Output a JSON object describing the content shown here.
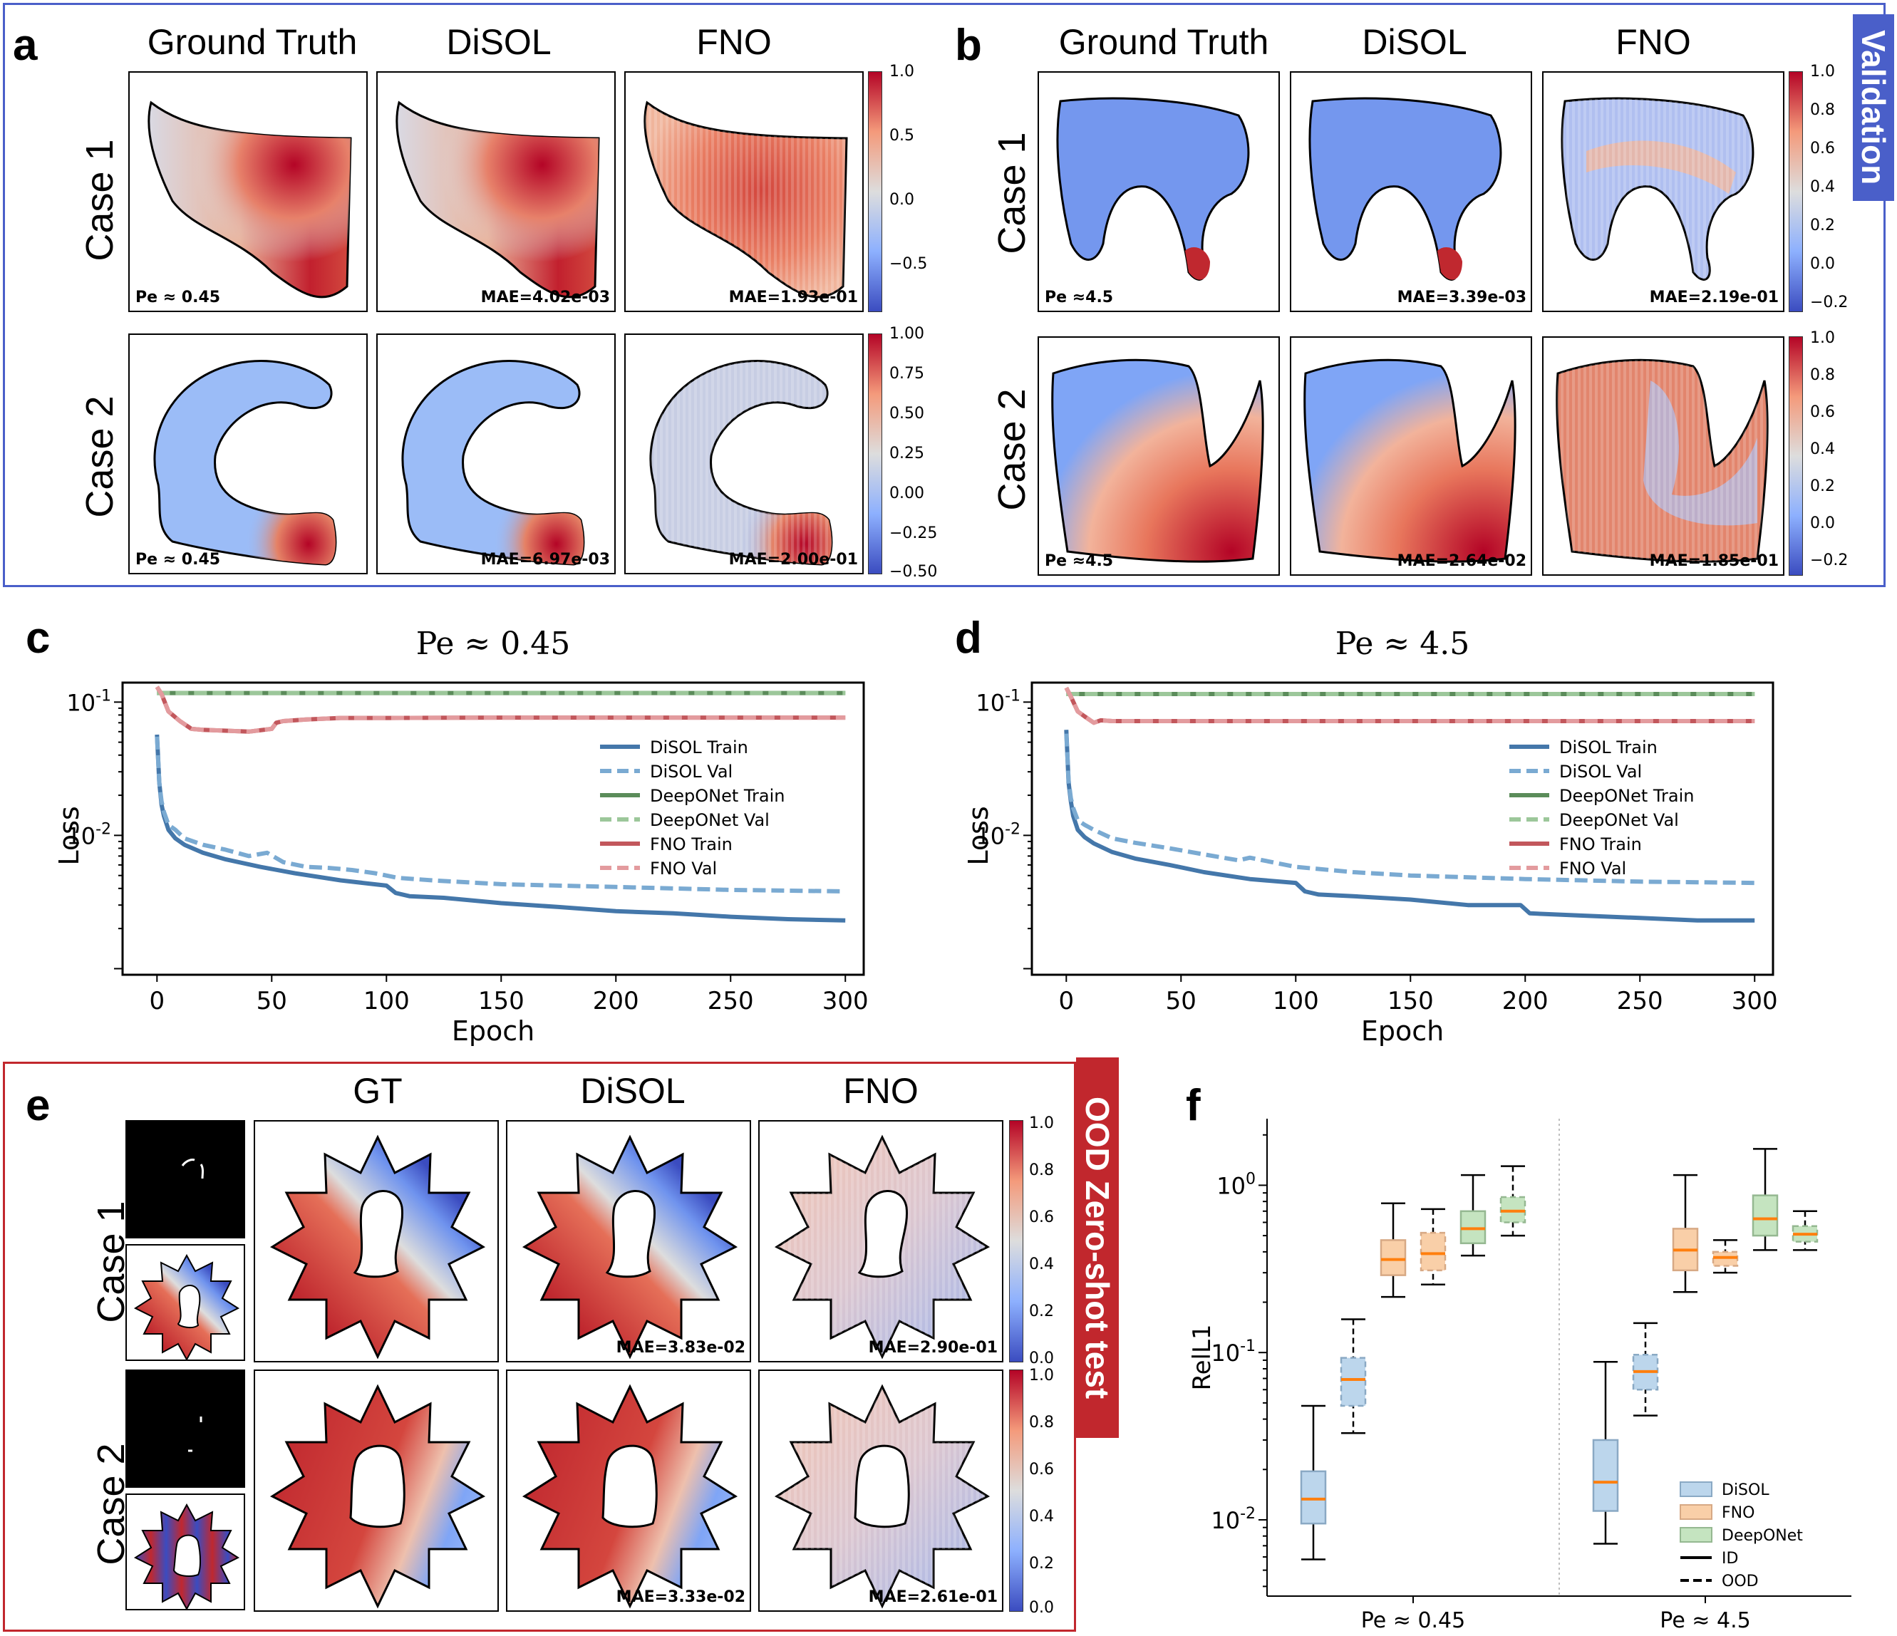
{
  "panel_a": {
    "letter": "a",
    "columns": [
      "Ground Truth",
      "DiSOL",
      "FNO"
    ],
    "rows": [
      "Case 1",
      "Case 2"
    ],
    "case1": {
      "pe": "Pe ≈ 0.45",
      "mae_disol": "MAE=4.02e-03",
      "mae_fno": "MAE=1.93e-01",
      "cbar_ticks": [
        "1.0",
        "0.5",
        "0.0",
        "−0.5"
      ]
    },
    "case2": {
      "pe": "Pe ≈ 0.45",
      "mae_disol": "MAE=6.97e-03",
      "mae_fno": "MAE=2.00e-01",
      "cbar_ticks": [
        "1.00",
        "0.75",
        "0.50",
        "0.25",
        "0.00",
        "−0.25",
        "−0.50"
      ]
    }
  },
  "panel_b": {
    "letter": "b",
    "columns": [
      "Ground Truth",
      "DiSOL",
      "FNO"
    ],
    "rows": [
      "Case 1",
      "Case 2"
    ],
    "side_tag": "Validation",
    "case1": {
      "pe": "Pe ≈4.5",
      "mae_disol": "MAE=3.39e-03",
      "mae_fno": "MAE=2.19e-01",
      "cbar_ticks": [
        "1.0",
        "0.8",
        "0.6",
        "0.4",
        "0.2",
        "0.0",
        "−0.2"
      ]
    },
    "case2": {
      "pe": "Pe ≈4.5",
      "mae_disol": "MAE=2.64e-02",
      "mae_fno": "MAE=1.85e-01",
      "cbar_ticks": [
        "1.0",
        "0.8",
        "0.6",
        "0.4",
        "0.2",
        "0.0",
        "−0.2"
      ]
    }
  },
  "panel_e": {
    "letter": "e",
    "columns": [
      "GT",
      "DiSOL",
      "FNO"
    ],
    "rows": [
      "Case 1",
      "Case 2"
    ],
    "side_tag": "OOD Zero-shot test",
    "case1": {
      "mae_disol": "MAE=3.83e-02",
      "mae_fno": "MAE=2.90e-01",
      "cbar_ticks": [
        "1.0",
        "0.8",
        "0.6",
        "0.4",
        "0.2",
        "0.0"
      ]
    },
    "case2": {
      "mae_disol": "MAE=3.33e-02",
      "mae_fno": "MAE=2.61e-01",
      "cbar_ticks": [
        "1.0",
        "0.8",
        "0.6",
        "0.4",
        "0.2",
        "0.0"
      ]
    }
  },
  "colors": {
    "validation_border": "#4a5fc9",
    "validation_tag": "#4a5fc9",
    "ood_border": "#c1272d",
    "ood_tag": "#c1272d",
    "disol": "#4477aa",
    "deeponet": "#5b8c5a",
    "fno": "#c2575c",
    "box_disol": "#bcd6ec",
    "box_fno": "#f9cfa8",
    "box_deeponet": "#c5e4c0",
    "median": "#ff7f0e"
  },
  "chart_data": [
    {
      "id": "c",
      "type": "line",
      "title": "Pe ≈ 0.45",
      "xlabel": "Epoch",
      "ylabel": "Loss",
      "yscale": "log",
      "xlim": [
        -15,
        308
      ],
      "ylim": [
        0.0009,
        0.14
      ],
      "xticks": [
        0,
        50,
        100,
        150,
        200,
        250,
        300
      ],
      "yticks": [
        {
          "value": 0.1,
          "label": "10^-1"
        },
        {
          "value": 0.01,
          "label": "10^-2"
        }
      ],
      "legend": "right",
      "series": [
        {
          "name": "DiSOL Train",
          "style": "solid",
          "color": "#4477aa",
          "x": [
            0,
            1,
            2,
            3,
            5,
            8,
            12,
            20,
            30,
            45,
            60,
            80,
            100,
            104,
            110,
            125,
            150,
            175,
            200,
            225,
            250,
            275,
            300
          ],
          "y": [
            0.057,
            0.025,
            0.017,
            0.014,
            0.011,
            0.0095,
            0.0085,
            0.0074,
            0.0066,
            0.0058,
            0.0052,
            0.0046,
            0.0042,
            0.0037,
            0.0035,
            0.0034,
            0.0031,
            0.0029,
            0.0027,
            0.0026,
            0.00245,
            0.00235,
            0.0023
          ]
        },
        {
          "name": "DiSOL Val",
          "style": "dashed",
          "color": "#7aaad2",
          "x": [
            0,
            1,
            2,
            3,
            5,
            8,
            12,
            20,
            30,
            40,
            48,
            55,
            65,
            75,
            85,
            95,
            105,
            120,
            150,
            200,
            250,
            300
          ],
          "y": [
            0.055,
            0.025,
            0.018,
            0.015,
            0.012,
            0.011,
            0.0095,
            0.0085,
            0.0078,
            0.007,
            0.0074,
            0.0063,
            0.0058,
            0.0057,
            0.0055,
            0.0052,
            0.0048,
            0.0046,
            0.0043,
            0.0041,
            0.0039,
            0.0038
          ]
        },
        {
          "name": "DeepONet Train",
          "style": "solid",
          "color": "#5b8c5a",
          "x": [
            0,
            300
          ],
          "y": [
            0.117,
            0.117
          ]
        },
        {
          "name": "DeepONet Val",
          "style": "dashed",
          "color": "#9cc79a",
          "x": [
            0,
            300
          ],
          "y": [
            0.117,
            0.117
          ]
        },
        {
          "name": "FNO Train",
          "style": "solid",
          "color": "#c2575c",
          "x": [
            0,
            2,
            5,
            10,
            15,
            20,
            30,
            40,
            50,
            52,
            55,
            65,
            80,
            100,
            150,
            200,
            250,
            300
          ],
          "y": [
            0.13,
            0.115,
            0.085,
            0.072,
            0.063,
            0.062,
            0.061,
            0.06,
            0.063,
            0.07,
            0.072,
            0.074,
            0.076,
            0.076,
            0.0765,
            0.0765,
            0.0765,
            0.0765
          ]
        },
        {
          "name": "FNO Val",
          "style": "dashed",
          "color": "#e39b9e",
          "x": [
            0,
            2,
            5,
            10,
            15,
            20,
            30,
            40,
            50,
            52,
            55,
            65,
            80,
            100,
            150,
            200,
            250,
            300
          ],
          "y": [
            0.13,
            0.115,
            0.085,
            0.072,
            0.063,
            0.062,
            0.061,
            0.06,
            0.063,
            0.07,
            0.072,
            0.074,
            0.076,
            0.076,
            0.0765,
            0.0765,
            0.0765,
            0.0765
          ]
        }
      ]
    },
    {
      "id": "d",
      "type": "line",
      "title": "Pe ≈ 4.5",
      "xlabel": "Epoch",
      "ylabel": "Loss",
      "yscale": "log",
      "xlim": [
        -15,
        308
      ],
      "ylim": [
        0.0009,
        0.14
      ],
      "xticks": [
        0,
        50,
        100,
        150,
        200,
        250,
        300
      ],
      "yticks": [
        {
          "value": 0.1,
          "label": "10^-1"
        },
        {
          "value": 0.01,
          "label": "10^-2"
        }
      ],
      "legend": "right",
      "series": [
        {
          "name": "DiSOL Train",
          "style": "solid",
          "color": "#4477aa",
          "x": [
            0,
            1,
            2,
            3,
            5,
            8,
            12,
            20,
            30,
            45,
            60,
            80,
            100,
            104,
            110,
            125,
            150,
            175,
            198,
            202,
            225,
            250,
            275,
            300
          ],
          "y": [
            0.062,
            0.025,
            0.018,
            0.014,
            0.011,
            0.0097,
            0.0087,
            0.0075,
            0.0067,
            0.006,
            0.0053,
            0.0047,
            0.0044,
            0.0038,
            0.0036,
            0.0035,
            0.0033,
            0.003,
            0.003,
            0.0026,
            0.0025,
            0.0024,
            0.0023,
            0.0023
          ]
        },
        {
          "name": "DiSOL Val",
          "style": "dashed",
          "color": "#7aaad2",
          "x": [
            0,
            1,
            2,
            3,
            5,
            8,
            12,
            20,
            30,
            45,
            60,
            75,
            80,
            100,
            125,
            150,
            200,
            250,
            300
          ],
          "y": [
            0.058,
            0.026,
            0.019,
            0.016,
            0.013,
            0.012,
            0.011,
            0.0095,
            0.0088,
            0.008,
            0.0072,
            0.0065,
            0.0068,
            0.0058,
            0.0053,
            0.005,
            0.0047,
            0.0045,
            0.0044
          ]
        },
        {
          "name": "DeepONet Train",
          "style": "solid",
          "color": "#5b8c5a",
          "x": [
            0,
            300
          ],
          "y": [
            0.115,
            0.115
          ]
        },
        {
          "name": "DeepONet Val",
          "style": "dashed",
          "color": "#9cc79a",
          "x": [
            0,
            300
          ],
          "y": [
            0.115,
            0.115
          ]
        },
        {
          "name": "FNO Train",
          "style": "solid",
          "color": "#c2575c",
          "x": [
            0,
            2,
            5,
            8,
            12,
            15,
            20,
            30,
            50,
            100,
            150,
            200,
            250,
            300
          ],
          "y": [
            0.128,
            0.11,
            0.085,
            0.078,
            0.07,
            0.073,
            0.072,
            0.072,
            0.072,
            0.072,
            0.072,
            0.072,
            0.072,
            0.072
          ]
        },
        {
          "name": "FNO Val",
          "style": "dashed",
          "color": "#e39b9e",
          "x": [
            0,
            2,
            5,
            8,
            12,
            15,
            20,
            30,
            50,
            100,
            150,
            200,
            250,
            300
          ],
          "y": [
            0.128,
            0.11,
            0.085,
            0.078,
            0.07,
            0.073,
            0.072,
            0.072,
            0.072,
            0.072,
            0.072,
            0.072,
            0.072,
            0.072
          ]
        }
      ]
    },
    {
      "id": "f",
      "type": "box",
      "ylabel": "RelL1",
      "yscale": "log",
      "ylim": [
        0.0035,
        2.5
      ],
      "yticks": [
        {
          "value": 1,
          "label": "10^0"
        },
        {
          "value": 0.1,
          "label": "10^-1"
        },
        {
          "value": 0.01,
          "label": "10^-2"
        }
      ],
      "groups": [
        "Pe ≈ 0.45",
        "Pe ≈ 4.5"
      ],
      "legend": [
        {
          "label": "DiSOL",
          "kind": "DiSOL"
        },
        {
          "label": "FNO",
          "kind": "FNO"
        },
        {
          "label": "DeepONet",
          "kind": "DeepONet"
        },
        {
          "label": "ID",
          "kind": "solid"
        },
        {
          "label": "OOD",
          "kind": "dashed"
        }
      ],
      "boxes": [
        {
          "group": 0,
          "model": "DiSOL",
          "dist": "ID",
          "whislo": 0.0058,
          "q1": 0.0095,
          "med": 0.0133,
          "q3": 0.0195,
          "whishi": 0.048
        },
        {
          "group": 0,
          "model": "DiSOL",
          "dist": "OOD",
          "whislo": 0.033,
          "q1": 0.048,
          "med": 0.069,
          "q3": 0.093,
          "whishi": 0.158
        },
        {
          "group": 0,
          "model": "FNO",
          "dist": "ID",
          "whislo": 0.215,
          "q1": 0.29,
          "med": 0.36,
          "q3": 0.47,
          "whishi": 0.78
        },
        {
          "group": 0,
          "model": "FNO",
          "dist": "OOD",
          "whislo": 0.255,
          "q1": 0.31,
          "med": 0.39,
          "q3": 0.52,
          "whishi": 0.72
        },
        {
          "group": 0,
          "model": "DeepONet",
          "dist": "ID",
          "whislo": 0.38,
          "q1": 0.45,
          "med": 0.55,
          "q3": 0.7,
          "whishi": 1.15
        },
        {
          "group": 0,
          "model": "DeepONet",
          "dist": "OOD",
          "whislo": 0.5,
          "q1": 0.6,
          "med": 0.7,
          "q3": 0.85,
          "whishi": 1.3
        },
        {
          "group": 1,
          "model": "DiSOL",
          "dist": "ID",
          "whislo": 0.0072,
          "q1": 0.0113,
          "med": 0.0168,
          "q3": 0.03,
          "whishi": 0.088
        },
        {
          "group": 1,
          "model": "DiSOL",
          "dist": "OOD",
          "whislo": 0.042,
          "q1": 0.06,
          "med": 0.077,
          "q3": 0.097,
          "whishi": 0.15
        },
        {
          "group": 1,
          "model": "FNO",
          "dist": "ID",
          "whislo": 0.23,
          "q1": 0.31,
          "med": 0.41,
          "q3": 0.55,
          "whishi": 1.15
        },
        {
          "group": 1,
          "model": "FNO",
          "dist": "OOD",
          "whislo": 0.3,
          "q1": 0.33,
          "med": 0.37,
          "q3": 0.4,
          "whishi": 0.47
        },
        {
          "group": 1,
          "model": "DeepONet",
          "dist": "ID",
          "whislo": 0.41,
          "q1": 0.5,
          "med": 0.63,
          "q3": 0.87,
          "whishi": 1.65
        },
        {
          "group": 1,
          "model": "DeepONet",
          "dist": "OOD",
          "whislo": 0.41,
          "q1": 0.46,
          "med": 0.51,
          "q3": 0.57,
          "whishi": 0.7
        }
      ]
    }
  ],
  "labels": {
    "c": "c",
    "d": "d",
    "f": "f"
  }
}
